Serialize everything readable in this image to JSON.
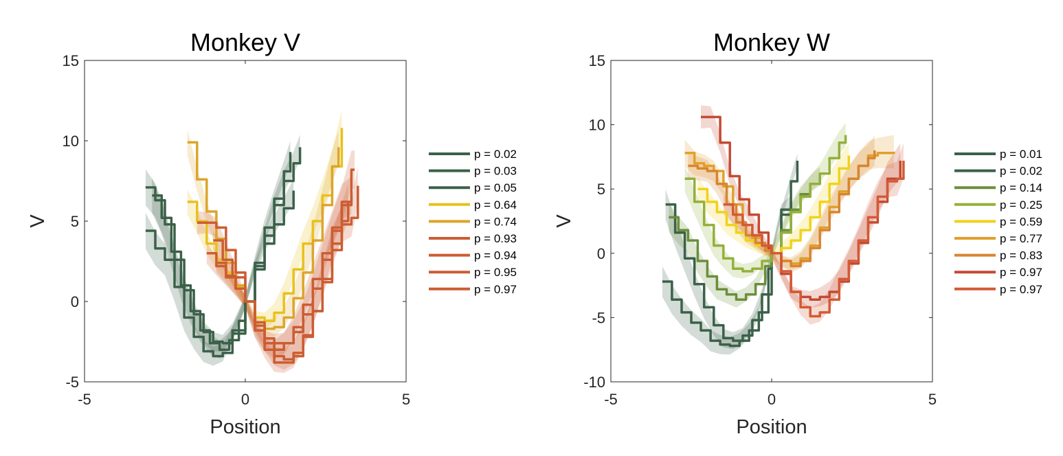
{
  "chart_data": [
    {
      "type": "line",
      "title": "Monkey V",
      "xlabel": "Position",
      "ylabel": "V",
      "xlim": [
        -5,
        5
      ],
      "ylim": [
        -5,
        15
      ],
      "xticks": [
        "-5",
        "0",
        "5"
      ],
      "yticks": [
        "-5",
        "0",
        "5",
        "10",
        "15"
      ],
      "xtick_values": [
        -5,
        0,
        5
      ],
      "ytick_values": [
        -5,
        0,
        5,
        10,
        15
      ],
      "grid": false,
      "legend_position": "right",
      "shaded_bands": true,
      "series": [
        {
          "name": "p = 0.02",
          "color": "#3b6149",
          "x": [
            -3.1,
            -2.8,
            -2.5,
            -2.2,
            -1.9,
            -1.6,
            -1.3,
            -1.0,
            -0.7,
            -0.4,
            0.0,
            0.3,
            0.6,
            0.9,
            1.2,
            1.5
          ],
          "y": [
            4.4,
            3.3,
            2.6,
            0.9,
            -1.0,
            -2.2,
            -3.1,
            -3.4,
            -3.2,
            -2.0,
            0.0,
            2.0,
            3.6,
            4.8,
            5.8,
            6.9
          ]
        },
        {
          "name": "p = 0.03",
          "color": "#3b6149",
          "x": [
            -3.1,
            -2.8,
            -2.5,
            -2.2,
            -1.9,
            -1.6,
            -1.3,
            -1.0,
            -0.7,
            -0.4,
            0.0,
            0.3,
            0.6,
            0.9,
            1.2,
            1.5,
            1.7
          ],
          "y": [
            7.1,
            6.3,
            4.8,
            2.6,
            0.7,
            -0.8,
            -1.9,
            -2.5,
            -2.6,
            -1.8,
            0.0,
            2.2,
            4.1,
            6.0,
            7.5,
            8.6,
            9.6
          ]
        },
        {
          "name": "p = 0.05",
          "color": "#3b6149",
          "x": [
            -2.9,
            -2.6,
            -2.3,
            -2.0,
            -1.7,
            -1.4,
            -1.1,
            -0.8,
            -0.5,
            -0.2,
            0.0,
            0.3,
            0.6,
            0.9,
            1.2,
            1.4
          ],
          "y": [
            6.6,
            5.2,
            3.1,
            1.0,
            -0.6,
            -1.8,
            -2.6,
            -3.0,
            -2.4,
            -1.2,
            0.0,
            2.4,
            4.6,
            6.4,
            8.1,
            9.3
          ]
        },
        {
          "name": "p = 0.64",
          "color": "#e8c11c",
          "x": [
            -1.8,
            -1.5,
            -1.2,
            -0.9,
            -0.6,
            -0.3,
            0.0,
            0.3,
            0.6,
            0.9,
            1.2,
            1.5,
            1.8,
            2.1,
            2.4,
            2.7,
            3.0
          ],
          "y": [
            6.2,
            5.0,
            3.6,
            2.6,
            1.8,
            0.9,
            0.0,
            -1.0,
            -1.2,
            -0.7,
            0.5,
            2.0,
            3.6,
            5.0,
            6.6,
            8.4,
            10.8
          ]
        },
        {
          "name": "p = 0.74",
          "color": "#dca52a",
          "x": [
            -1.8,
            -1.5,
            -1.2,
            -0.9,
            -0.6,
            -0.3,
            0.0,
            0.3,
            0.6,
            0.9,
            1.2,
            1.5,
            1.8,
            2.1,
            2.4,
            2.7,
            2.9
          ],
          "y": [
            9.9,
            7.6,
            5.6,
            3.9,
            2.4,
            1.0,
            0.0,
            -1.3,
            -1.7,
            -1.6,
            -1.0,
            0.2,
            1.8,
            3.8,
            6.0,
            8.4,
            9.6
          ]
        },
        {
          "name": "p = 0.93",
          "color": "#cb5d33",
          "x": [
            -1.5,
            -1.2,
            -0.9,
            -0.6,
            -0.3,
            0.0,
            0.3,
            0.6,
            0.9,
            1.2,
            1.5,
            1.8,
            2.1,
            2.4,
            2.7,
            3.0,
            3.3
          ],
          "y": [
            4.9,
            4.9,
            4.6,
            3.2,
            1.8,
            0.0,
            -1.8,
            -2.6,
            -3.0,
            -2.6,
            -1.6,
            -0.2,
            1.4,
            3.0,
            4.6,
            6.2,
            6.6
          ]
        },
        {
          "name": "p = 0.94",
          "color": "#cb5d33",
          "x": [
            -1.0,
            -0.7,
            -0.4,
            0.0,
            0.3,
            0.6,
            0.9,
            1.2,
            1.5,
            1.8,
            2.1,
            2.4,
            2.7,
            3.0,
            3.3,
            3.5
          ],
          "y": [
            3.8,
            2.6,
            1.5,
            0.0,
            -1.8,
            -3.0,
            -3.8,
            -3.8,
            -3.4,
            -2.2,
            -0.6,
            1.4,
            3.6,
            4.8,
            5.2,
            7.2
          ]
        },
        {
          "name": "p = 0.95",
          "color": "#cb5d33",
          "x": [
            -1.2,
            -0.9,
            -0.6,
            -0.3,
            0.0,
            0.3,
            0.6,
            0.9,
            1.2,
            1.5,
            1.8,
            2.1,
            2.4,
            2.7,
            3.0,
            3.3,
            3.4
          ],
          "y": [
            3.0,
            2.2,
            1.5,
            0.8,
            0.0,
            -1.3,
            -2.3,
            -2.6,
            -2.6,
            -1.9,
            -0.8,
            0.8,
            2.6,
            4.4,
            6.0,
            8.2,
            8.2
          ]
        },
        {
          "name": "p = 0.97",
          "color": "#cb5d33",
          "x": [
            -0.9,
            -0.6,
            -0.3,
            0.0,
            0.3,
            0.6,
            0.9,
            1.2,
            1.5,
            1.8,
            2.1,
            2.4,
            2.7,
            3.0,
            3.2
          ],
          "y": [
            2.4,
            1.6,
            0.8,
            0.0,
            -1.5,
            -2.6,
            -3.4,
            -3.6,
            -3.2,
            -2.1,
            -0.6,
            1.2,
            3.2,
            5.0,
            6.2
          ]
        }
      ]
    },
    {
      "type": "line",
      "title": "Monkey W",
      "xlabel": "Position",
      "ylabel": "V",
      "xlim": [
        -5,
        5
      ],
      "ylim": [
        -10,
        15
      ],
      "xticks": [
        "-5",
        "0",
        "5"
      ],
      "yticks": [
        "-10",
        "-5",
        "0",
        "5",
        "10",
        "15"
      ],
      "xtick_values": [
        -5,
        0,
        5
      ],
      "ytick_values": [
        -10,
        -5,
        0,
        5,
        10,
        15
      ],
      "grid": false,
      "legend_position": "right",
      "shaded_bands": true,
      "series": [
        {
          "name": "p = 0.01",
          "color": "#3b6149",
          "x": [
            -3.4,
            -3.1,
            -2.8,
            -2.5,
            -2.2,
            -1.9,
            -1.6,
            -1.3,
            -1.0,
            -0.7,
            -0.4,
            -0.1,
            0.0,
            0.3,
            0.6,
            0.8
          ],
          "y": [
            -2.2,
            -3.6,
            -4.6,
            -5.4,
            -6.0,
            -6.8,
            -7.1,
            -7.2,
            -6.8,
            -6.0,
            -4.6,
            -1.2,
            0.0,
            3.0,
            5.6,
            7.2
          ]
        },
        {
          "name": "p = 0.02",
          "color": "#3b6149",
          "x": [
            -3.3,
            -3.0,
            -2.7,
            -2.4,
            -2.1,
            -1.8,
            -1.5,
            -1.2,
            -0.9,
            -0.6,
            -0.3,
            0.0,
            0.3,
            0.6
          ],
          "y": [
            3.8,
            1.6,
            -0.4,
            -2.4,
            -4.2,
            -5.6,
            -6.6,
            -6.8,
            -6.4,
            -5.2,
            -3.2,
            0.0,
            3.4,
            4.0
          ]
        },
        {
          "name": "p = 0.14",
          "color": "#6b8e3a",
          "x": [
            -3.2,
            -2.9,
            -2.6,
            -2.3,
            -2.0,
            -1.7,
            -1.4,
            -1.1,
            -0.8,
            -0.5,
            -0.2,
            0.0,
            0.3,
            0.6,
            0.9,
            1.2,
            1.5
          ],
          "y": [
            2.8,
            1.8,
            1.0,
            -0.6,
            -1.8,
            -2.8,
            -3.2,
            -3.6,
            -3.2,
            -2.4,
            -1.0,
            0.0,
            1.8,
            3.4,
            4.6,
            5.4,
            6.0
          ]
        },
        {
          "name": "p = 0.25",
          "color": "#93b03a",
          "x": [
            -2.7,
            -2.4,
            -2.1,
            -1.8,
            -1.5,
            -1.2,
            -0.9,
            -0.6,
            -0.3,
            0.0,
            0.3,
            0.6,
            0.9,
            1.2,
            1.5,
            1.8,
            2.1,
            2.3
          ],
          "y": [
            5.8,
            4.0,
            2.2,
            0.6,
            -0.4,
            -1.2,
            -1.4,
            -1.2,
            -0.6,
            0.0,
            1.6,
            3.2,
            4.4,
            5.4,
            6.2,
            7.4,
            8.6,
            9.2
          ]
        },
        {
          "name": "p = 0.59",
          "color": "#f0d21c",
          "x": [
            -2.3,
            -2.0,
            -1.7,
            -1.4,
            -1.1,
            -0.8,
            -0.5,
            -0.2,
            0.0,
            0.3,
            0.6,
            0.9,
            1.2,
            1.5,
            1.8,
            2.1,
            2.4
          ],
          "y": [
            5.0,
            4.0,
            3.2,
            2.2,
            1.6,
            1.0,
            0.6,
            0.2,
            0.0,
            0.4,
            1.0,
            1.8,
            2.8,
            4.0,
            5.4,
            6.6,
            7.6
          ]
        },
        {
          "name": "p = 0.77",
          "color": "#e0a02a",
          "x": [
            -2.7,
            -2.4,
            -2.1,
            -1.8,
            -1.5,
            -1.2,
            -0.9,
            -0.6,
            -0.3,
            0.0,
            0.3,
            0.6,
            0.9,
            1.2,
            1.5,
            1.8,
            2.1,
            2.4,
            2.7,
            3.0,
            3.3,
            3.8
          ],
          "y": [
            7.8,
            7.0,
            6.8,
            6.4,
            5.2,
            3.8,
            2.2,
            1.2,
            0.6,
            0.0,
            -0.6,
            -0.8,
            -0.4,
            0.6,
            2.0,
            3.6,
            4.8,
            5.8,
            6.8,
            7.6,
            7.8,
            7.9
          ]
        },
        {
          "name": "p = 0.83",
          "color": "#d88530",
          "x": [
            -2.6,
            -2.3,
            -2.0,
            -1.7,
            -1.4,
            -1.1,
            -0.8,
            -0.5,
            -0.2,
            0.0,
            0.3,
            0.6,
            0.9,
            1.2,
            1.5,
            1.8,
            2.1,
            2.4,
            2.7,
            3.0,
            3.2
          ],
          "y": [
            6.8,
            6.6,
            6.4,
            5.4,
            3.8,
            2.4,
            1.4,
            0.8,
            0.2,
            0.0,
            -0.6,
            -1.0,
            -0.6,
            0.4,
            1.8,
            3.2,
            4.6,
            5.8,
            6.8,
            7.4,
            8.0
          ]
        },
        {
          "name": "p = 0.97",
          "color": "#c34a32",
          "x": [
            -2.2,
            -1.9,
            -1.6,
            -1.3,
            -1.0,
            -0.7,
            -0.4,
            -0.1,
            0.0,
            0.3,
            0.6,
            0.9,
            1.2,
            1.5,
            1.8,
            2.1,
            2.4,
            2.7,
            3.0,
            3.3,
            3.6,
            4.0
          ],
          "y": [
            10.6,
            10.6,
            8.6,
            6.0,
            4.2,
            3.0,
            1.6,
            0.4,
            0.0,
            -1.6,
            -3.0,
            -3.4,
            -3.6,
            -3.4,
            -3.0,
            -2.2,
            -0.8,
            0.8,
            2.4,
            4.0,
            5.8,
            7.2
          ]
        },
        {
          "name": "p = 0.97",
          "color": "#d25a35",
          "x": [
            -1.5,
            -1.2,
            -0.9,
            -0.6,
            -0.3,
            0.0,
            0.3,
            0.6,
            0.9,
            1.2,
            1.5,
            1.8,
            2.1,
            2.4,
            2.7,
            3.0,
            3.3,
            3.6,
            3.9,
            4.1
          ],
          "y": [
            3.8,
            3.0,
            2.2,
            1.4,
            0.6,
            0.0,
            -1.4,
            -3.0,
            -4.2,
            -4.9,
            -4.6,
            -3.6,
            -2.0,
            -0.6,
            1.0,
            2.8,
            4.4,
            5.6,
            5.8,
            7.2
          ]
        }
      ]
    }
  ]
}
